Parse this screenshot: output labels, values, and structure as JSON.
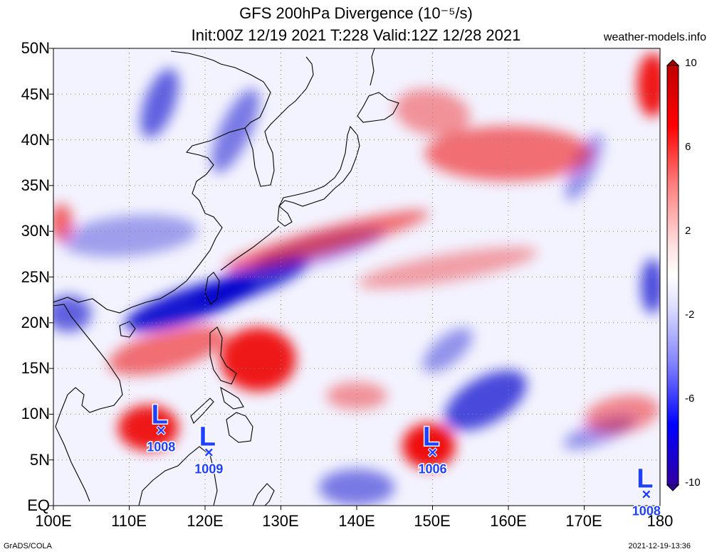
{
  "title": "GFS 200hPa Divergence (10⁻⁵/s)",
  "subtitle": "Init:00Z 12/19 2021 T:228 Valid:12Z 12/28 2021",
  "site": "weather-models.info",
  "credit_left": "GrADS/COLA",
  "credit_right": "2021-12-19-13:36",
  "map": {
    "lon_range": [
      100,
      180
    ],
    "lat_range": [
      0,
      50
    ],
    "lat_labels": [
      "EQ",
      "5N",
      "10N",
      "15N",
      "20N",
      "25N",
      "30N",
      "35N",
      "40N",
      "45N",
      "50N"
    ],
    "lon_labels": [
      "100E",
      "110E",
      "120E",
      "130E",
      "140E",
      "150E",
      "160E",
      "170E",
      "180"
    ],
    "grid": "dotted",
    "colors": {
      "negative": "#0000cc",
      "positive": "#ee0000",
      "neutral": "#ffffff"
    }
  },
  "colorbar": {
    "labels": [
      "10",
      "6",
      "2",
      "-2",
      "-6",
      "-10"
    ],
    "range": [
      -10,
      10
    ],
    "colors_top_to_bottom": [
      "#c00000",
      "#ff0000",
      "#ff8080",
      "#ffe0e0",
      "#e0e0ff",
      "#8080ff",
      "#0000ff",
      "#3000a0"
    ]
  },
  "lows": [
    {
      "letter": "L",
      "pressure": "1008",
      "lon": 114.2,
      "lat": 8.2
    },
    {
      "letter": "L",
      "pressure": "1009",
      "lon": 120.5,
      "lat": 5.8
    },
    {
      "letter": "L",
      "pressure": "1006",
      "lon": 150.0,
      "lat": 5.8
    },
    {
      "letter": "L",
      "pressure": "1008",
      "lon": 178.2,
      "lat": 1.2
    }
  ],
  "features": [
    {
      "sign": "neg",
      "lon": 118,
      "lat": 22,
      "rx": 9,
      "ry": 1.8,
      "rot": -18,
      "i": 0.9
    },
    {
      "sign": "neg",
      "lon": 126,
      "lat": 24.5,
      "rx": 8,
      "ry": 1.6,
      "rot": -20,
      "i": 0.8
    },
    {
      "sign": "neg",
      "lon": 135,
      "lat": 28,
      "rx": 9,
      "ry": 1.5,
      "rot": -15,
      "i": 0.4
    },
    {
      "sign": "neg",
      "lon": 110,
      "lat": 29.5,
      "rx": 9,
      "ry": 2.2,
      "rot": -5,
      "i": 0.35
    },
    {
      "sign": "neg",
      "lon": 102,
      "lat": 21,
      "rx": 3,
      "ry": 2,
      "rot": 0,
      "i": 0.6
    },
    {
      "sign": "neg",
      "lon": 157,
      "lat": 11.5,
      "rx": 6,
      "ry": 2.5,
      "rot": -30,
      "i": 0.7
    },
    {
      "sign": "neg",
      "lon": 152,
      "lat": 17,
      "rx": 4,
      "ry": 1.5,
      "rot": -40,
      "i": 0.4
    },
    {
      "sign": "neg",
      "lon": 179,
      "lat": 24,
      "rx": 1.5,
      "ry": 3,
      "rot": 0,
      "i": 0.7
    },
    {
      "sign": "neg",
      "lon": 172,
      "lat": 8,
      "rx": 5,
      "ry": 1.2,
      "rot": -20,
      "i": 0.4
    },
    {
      "sign": "neg",
      "lon": 114,
      "lat": 44,
      "rx": 2,
      "ry": 4,
      "rot": 20,
      "i": 0.6
    },
    {
      "sign": "neg",
      "lon": 124,
      "lat": 41,
      "rx": 2,
      "ry": 5,
      "rot": 25,
      "i": 0.5
    },
    {
      "sign": "neg",
      "lon": 140,
      "lat": 2,
      "rx": 5,
      "ry": 2,
      "rot": 0,
      "i": 0.5
    },
    {
      "sign": "neg",
      "lon": 170,
      "lat": 37,
      "rx": 1.5,
      "ry": 4,
      "rot": 25,
      "i": 0.4
    },
    {
      "sign": "pos",
      "lon": 127,
      "lat": 16,
      "rx": 5,
      "ry": 3.5,
      "rot": 0,
      "i": 0.9
    },
    {
      "sign": "pos",
      "lon": 112.5,
      "lat": 8.5,
      "rx": 4,
      "ry": 2.5,
      "rot": 0,
      "i": 0.9
    },
    {
      "sign": "pos",
      "lon": 149.5,
      "lat": 6.5,
      "rx": 3.5,
      "ry": 2.5,
      "rot": 0,
      "i": 0.95
    },
    {
      "sign": "pos",
      "lon": 115,
      "lat": 17,
      "rx": 8,
      "ry": 2.2,
      "rot": -15,
      "i": 0.55
    },
    {
      "sign": "pos",
      "lon": 136,
      "lat": 29,
      "rx": 14,
      "ry": 1.4,
      "rot": -15,
      "i": 0.55
    },
    {
      "sign": "pos",
      "lon": 160,
      "lat": 38.5,
      "rx": 11,
      "ry": 3,
      "rot": 0,
      "i": 0.55
    },
    {
      "sign": "pos",
      "lon": 179,
      "lat": 46,
      "rx": 2,
      "ry": 3.5,
      "rot": 0,
      "i": 0.9
    },
    {
      "sign": "pos",
      "lon": 101,
      "lat": 31,
      "rx": 1.5,
      "ry": 2,
      "rot": 0,
      "i": 0.6
    },
    {
      "sign": "pos",
      "lon": 152,
      "lat": 26,
      "rx": 12,
      "ry": 1.5,
      "rot": -10,
      "i": 0.35
    },
    {
      "sign": "pos",
      "lon": 175,
      "lat": 10,
      "rx": 5,
      "ry": 2,
      "rot": -10,
      "i": 0.45
    },
    {
      "sign": "pos",
      "lon": 150,
      "lat": 43,
      "rx": 5,
      "ry": 2.5,
      "rot": 10,
      "i": 0.4
    },
    {
      "sign": "pos",
      "lon": 140,
      "lat": 12,
      "rx": 4,
      "ry": 1.5,
      "rot": 0,
      "i": 0.4
    }
  ]
}
